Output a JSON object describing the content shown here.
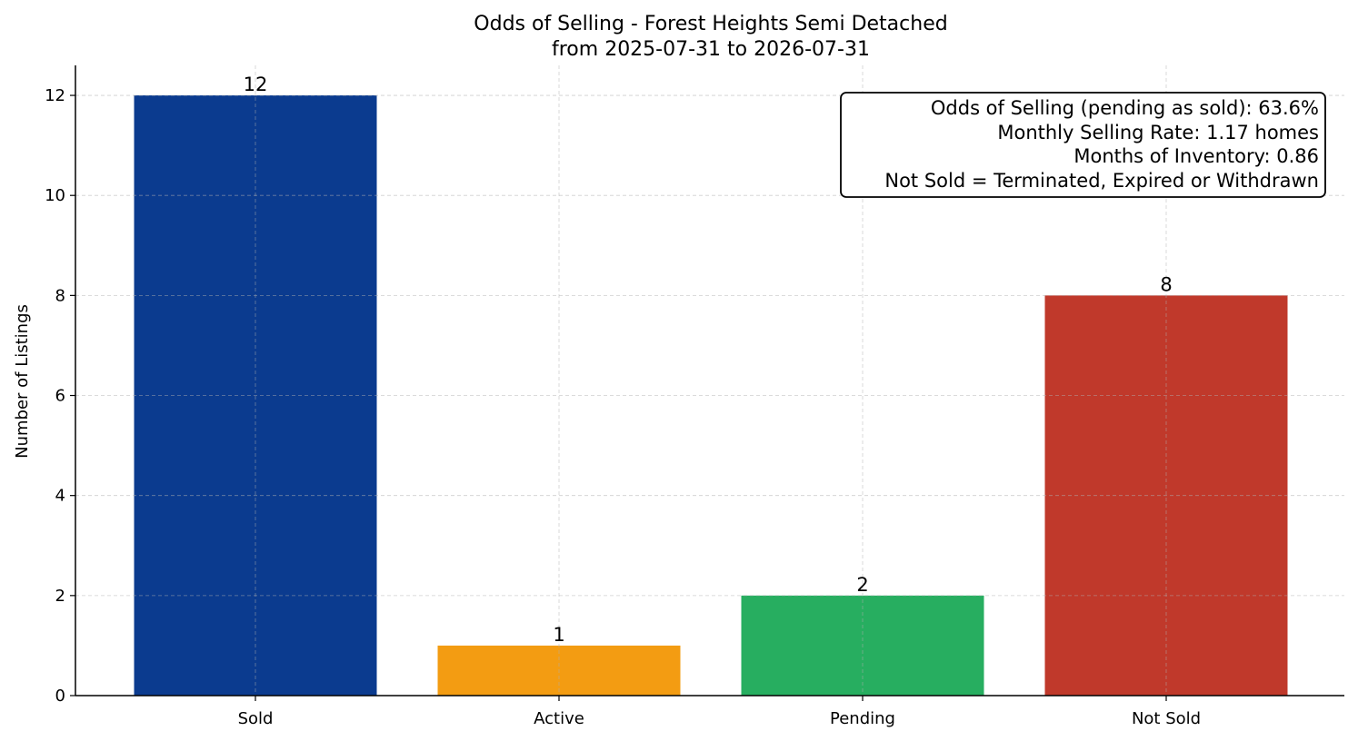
{
  "chart_data": {
    "type": "bar",
    "title": "Odds of Selling - Forest Heights Semi Detached",
    "subtitle": "from 2025-07-31 to 2026-07-31",
    "xlabel": "",
    "ylabel": "Number of Listings",
    "categories": [
      "Sold",
      "Active",
      "Pending",
      "Not Sold"
    ],
    "values": [
      12,
      1,
      2,
      8
    ],
    "data_labels": [
      "12",
      "1",
      "2",
      "8"
    ],
    "colors": [
      "#0b3b8f",
      "#f39c12",
      "#27ae60",
      "#c0392b"
    ],
    "ylim": [
      0,
      12.6
    ],
    "yticks": [
      0,
      2,
      4,
      6,
      8,
      10,
      12
    ],
    "ytick_labels": [
      "0",
      "2",
      "4",
      "6",
      "8",
      "10",
      "12"
    ],
    "grid": true,
    "info_box": {
      "position": "top-right",
      "lines": [
        "Odds of Selling (pending as sold): 63.6%",
        "Monthly Selling Rate: 1.17 homes",
        "Months of Inventory: 0.86",
        "Not Sold = Terminated, Expired or Withdrawn"
      ]
    }
  }
}
